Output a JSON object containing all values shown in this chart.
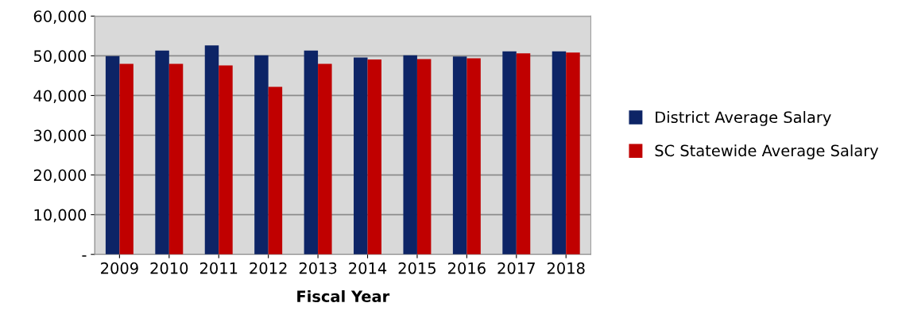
{
  "chart_data": {
    "type": "bar",
    "xlabel": "Fiscal Year",
    "categories": [
      "2009",
      "2010",
      "2011",
      "2012",
      "2013",
      "2014",
      "2015",
      "2016",
      "2017",
      "2018"
    ],
    "series": [
      {
        "name": "District Average Salary",
        "color": "#0d2466",
        "values": [
          49900,
          51300,
          52600,
          50100,
          51300,
          49600,
          50100,
          49800,
          51100,
          51100
        ]
      },
      {
        "name": "SC Statewide Average Salary",
        "color": "#c00000",
        "values": [
          48000,
          48000,
          47600,
          42200,
          48000,
          49100,
          49200,
          49400,
          50600,
          50800
        ]
      }
    ],
    "ylim": [
      0,
      60000
    ],
    "yticks": [
      {
        "value": 0,
        "label": "-"
      },
      {
        "value": 10000,
        "label": "10,000"
      },
      {
        "value": 20000,
        "label": "20,000"
      },
      {
        "value": 30000,
        "label": "30,000"
      },
      {
        "value": 40000,
        "label": "40,000"
      },
      {
        "value": 50000,
        "label": "50,000"
      },
      {
        "value": 60000,
        "label": "60,000"
      }
    ],
    "grid": "y",
    "legend": "right"
  }
}
